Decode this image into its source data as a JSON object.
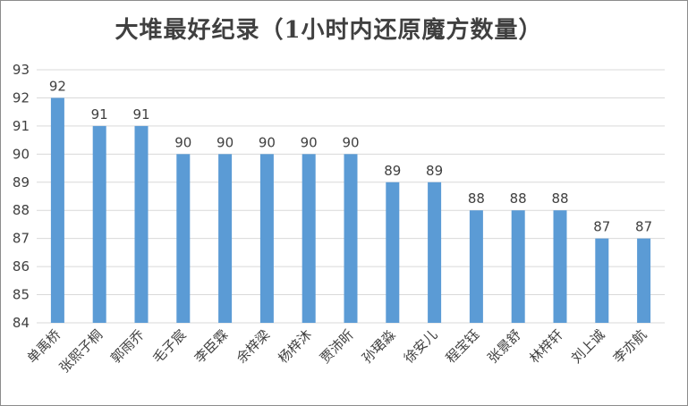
{
  "chart_data": {
    "type": "bar",
    "title": "大堆最好纪录（1小时内还原魔方数量）",
    "categories": [
      "单禹桥",
      "张熙子桐",
      "郭雨乔",
      "毛子宸",
      "李臣霖",
      "余梓梁",
      "杨梓沐",
      "贾沛昕",
      "孙珺淼",
      "徐安儿",
      "程宝钰",
      "张景舒",
      "林梓轩",
      "刘上诚",
      "李亦航"
    ],
    "values": [
      92,
      91,
      91,
      90,
      90,
      90,
      90,
      90,
      89,
      89,
      88,
      88,
      88,
      87,
      87
    ],
    "ylim": [
      84,
      93
    ],
    "yticks": [
      84,
      85,
      86,
      87,
      88,
      89,
      90,
      91,
      92,
      93
    ],
    "xlabel": "",
    "ylabel": "",
    "grid": true,
    "data_labels": true,
    "bar_color": "#5b9bd5",
    "grid_color": "#d9d9d9"
  }
}
